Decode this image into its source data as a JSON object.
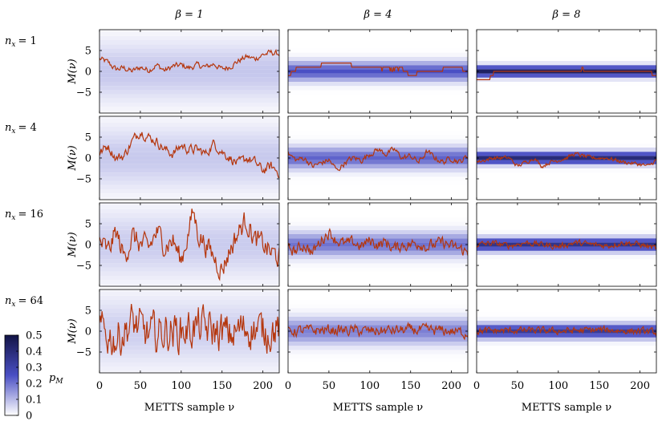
{
  "chart_data": {
    "type": "line",
    "columns": [
      {
        "label": "β = 1",
        "beta": 1
      },
      {
        "label": "β = 4",
        "beta": 4
      },
      {
        "label": "β = 8",
        "beta": 8
      }
    ],
    "rows": [
      {
        "label": "n",
        "sub": "x",
        "value": "= 1",
        "nx": 1
      },
      {
        "label": "n",
        "sub": "x",
        "value": "= 4",
        "nx": 4
      },
      {
        "label": "n",
        "sub": "x",
        "value": "= 16",
        "nx": 16
      },
      {
        "label": "n",
        "sub": "x",
        "value": "= 64",
        "nx": 64
      }
    ],
    "xlabel": "METTS sample ν",
    "ylabel": "M(ν)",
    "xlim": [
      0,
      220
    ],
    "ylim": [
      -10,
      10
    ],
    "xticks": [
      0,
      50,
      100,
      150,
      200
    ],
    "yticks": [
      -5,
      0,
      5
    ],
    "series_color": "#b5360d",
    "colorbar": {
      "label": "p",
      "label_sub": "M",
      "ticks": [
        "0",
        "0.1",
        "0.2",
        "0.3",
        "0.4",
        "0.5"
      ],
      "color_low": "#ffffff",
      "color_mid": "#4a4fc4",
      "color_high": "#121446"
    },
    "distribution_sigma": [
      [
        5.0,
        1.6,
        0.9
      ],
      [
        5.2,
        1.8,
        1.0
      ],
      [
        5.5,
        2.0,
        1.1
      ],
      [
        5.8,
        2.2,
        1.2
      ]
    ],
    "panels": [
      [
        {
          "beta": 1,
          "nx": 1,
          "keypoints": [
            [
              0,
              3
            ],
            [
              10,
              2.2
            ],
            [
              20,
              0.5
            ],
            [
              30,
              0.8
            ],
            [
              40,
              0
            ],
            [
              50,
              1
            ],
            [
              60,
              0.3
            ],
            [
              70,
              1.5
            ],
            [
              80,
              0.2
            ],
            [
              90,
              1.2
            ],
            [
              100,
              1.5
            ],
            [
              110,
              0.8
            ],
            [
              120,
              1.5
            ],
            [
              130,
              1
            ],
            [
              140,
              1.8
            ],
            [
              150,
              0.5
            ],
            [
              160,
              1.2
            ],
            [
              170,
              2.5
            ],
            [
              180,
              3.5
            ],
            [
              190,
              3
            ],
            [
              200,
              4
            ],
            [
              210,
              4.5
            ],
            [
              220,
              4.2
            ]
          ],
          "noise": 0.6
        },
        {
          "beta": 4,
          "nx": 1,
          "keypoints": [
            [
              0,
              -1
            ],
            [
              10,
              0.5
            ],
            [
              20,
              1
            ],
            [
              40,
              1
            ],
            [
              42,
              2
            ],
            [
              60,
              2
            ],
            [
              75,
              2
            ],
            [
              80,
              1
            ],
            [
              100,
              1
            ],
            [
              110,
              1
            ],
            [
              115,
              0.5
            ],
            [
              140,
              0.5
            ],
            [
              150,
              -1
            ],
            [
              165,
              0
            ],
            [
              190,
              0.5
            ],
            [
              210,
              1
            ],
            [
              220,
              -0.5
            ]
          ],
          "noise": 0.1
        },
        {
          "beta": 8,
          "nx": 1,
          "keypoints": [
            [
              0,
              -2
            ],
            [
              15,
              -2
            ],
            [
              22,
              0
            ],
            [
              60,
              0
            ],
            [
              70,
              0.3
            ],
            [
              100,
              0
            ],
            [
              120,
              0
            ],
            [
              130,
              0.5
            ],
            [
              140,
              0.3
            ],
            [
              150,
              0
            ],
            [
              200,
              0
            ],
            [
              210,
              0.3
            ],
            [
              220,
              -1.5
            ]
          ],
          "noise": 0.1
        }
      ],
      [
        {
          "beta": 1,
          "nx": 4,
          "keypoints": [
            [
              0,
              1
            ],
            [
              10,
              3
            ],
            [
              20,
              0
            ],
            [
              30,
              0.5
            ],
            [
              40,
              4
            ],
            [
              50,
              6.5
            ],
            [
              60,
              5
            ],
            [
              70,
              4
            ],
            [
              80,
              2
            ],
            [
              90,
              1
            ],
            [
              100,
              3
            ],
            [
              110,
              2
            ],
            [
              120,
              2
            ],
            [
              130,
              1
            ],
            [
              140,
              3.5
            ],
            [
              150,
              1.5
            ],
            [
              160,
              0
            ],
            [
              170,
              -1.5
            ],
            [
              180,
              0
            ],
            [
              190,
              -1
            ],
            [
              200,
              -3
            ],
            [
              210,
              -2
            ],
            [
              220,
              -3.5
            ]
          ],
          "noise": 1.0
        },
        {
          "beta": 4,
          "nx": 4,
          "keypoints": [
            [
              0,
              1
            ],
            [
              10,
              -0.5
            ],
            [
              20,
              0
            ],
            [
              30,
              -2
            ],
            [
              50,
              -0.5
            ],
            [
              60,
              -3
            ],
            [
              70,
              -1
            ],
            [
              80,
              0
            ],
            [
              90,
              -0.5
            ],
            [
              100,
              1
            ],
            [
              110,
              2
            ],
            [
              120,
              1
            ],
            [
              130,
              2
            ],
            [
              140,
              0
            ],
            [
              150,
              0.5
            ],
            [
              160,
              -1
            ],
            [
              170,
              1.5
            ],
            [
              180,
              0
            ],
            [
              190,
              -1
            ],
            [
              200,
              0
            ],
            [
              210,
              -1
            ],
            [
              220,
              0.5
            ]
          ],
          "noise": 0.6
        },
        {
          "beta": 8,
          "nx": 4,
          "keypoints": [
            [
              0,
              -1
            ],
            [
              20,
              0
            ],
            [
              40,
              0
            ],
            [
              50,
              -2
            ],
            [
              60,
              -1
            ],
            [
              70,
              0
            ],
            [
              80,
              -2
            ],
            [
              90,
              -1
            ],
            [
              110,
              0
            ],
            [
              120,
              1
            ],
            [
              130,
              0.5
            ],
            [
              140,
              0
            ],
            [
              160,
              0
            ],
            [
              180,
              -1
            ],
            [
              200,
              -1.5
            ],
            [
              210,
              -2
            ],
            [
              220,
              -0.5
            ]
          ],
          "noise": 0.4
        }
      ],
      [
        {
          "beta": 1,
          "nx": 16,
          "keypoints": [
            [
              0,
              1
            ],
            [
              10,
              -2
            ],
            [
              20,
              3
            ],
            [
              30,
              -3
            ],
            [
              40,
              2
            ],
            [
              50,
              0
            ],
            [
              60,
              -1
            ],
            [
              70,
              3
            ],
            [
              80,
              0
            ],
            [
              90,
              1
            ],
            [
              100,
              -4
            ],
            [
              110,
              4
            ],
            [
              115,
              8
            ],
            [
              120,
              3
            ],
            [
              130,
              0
            ],
            [
              140,
              -3
            ],
            [
              150,
              -6
            ],
            [
              160,
              -1
            ],
            [
              170,
              3
            ],
            [
              180,
              6
            ],
            [
              190,
              1
            ],
            [
              200,
              0
            ],
            [
              210,
              -2
            ],
            [
              220,
              -3
            ]
          ],
          "noise": 2.3
        },
        {
          "beta": 4,
          "nx": 16,
          "keypoints": [
            [
              0,
              -1
            ],
            [
              10,
              -1.5
            ],
            [
              20,
              0
            ],
            [
              30,
              -2
            ],
            [
              40,
              1
            ],
            [
              50,
              3
            ],
            [
              60,
              1
            ],
            [
              70,
              0
            ],
            [
              80,
              0.5
            ],
            [
              90,
              -0.5
            ],
            [
              100,
              1
            ],
            [
              110,
              0
            ],
            [
              120,
              0.5
            ],
            [
              130,
              -1
            ],
            [
              140,
              0
            ],
            [
              150,
              0
            ],
            [
              160,
              0.5
            ],
            [
              170,
              -0.5
            ],
            [
              180,
              0
            ],
            [
              190,
              0.5
            ],
            [
              200,
              -0.5
            ],
            [
              210,
              -1
            ],
            [
              220,
              -2
            ]
          ],
          "noise": 1.2
        },
        {
          "beta": 8,
          "nx": 16,
          "keypoints": [
            [
              0,
              0
            ],
            [
              20,
              0.3
            ],
            [
              40,
              -0.3
            ],
            [
              60,
              0.5
            ],
            [
              80,
              0
            ],
            [
              100,
              -0.5
            ],
            [
              120,
              0.5
            ],
            [
              140,
              0
            ],
            [
              160,
              -0.3
            ],
            [
              180,
              0.5
            ],
            [
              200,
              0
            ],
            [
              220,
              -1
            ]
          ],
          "noise": 0.6
        }
      ],
      [
        {
          "beta": 1,
          "nx": 64,
          "keypoints": [
            [
              0,
              0
            ],
            [
              20,
              -2
            ],
            [
              40,
              2
            ],
            [
              60,
              -1
            ],
            [
              80,
              0
            ],
            [
              100,
              0
            ],
            [
              120,
              1
            ],
            [
              140,
              0
            ],
            [
              160,
              -1
            ],
            [
              180,
              1
            ],
            [
              200,
              0
            ],
            [
              220,
              0.5
            ]
          ],
          "noise": 4.0
        },
        {
          "beta": 4,
          "nx": 64,
          "keypoints": [
            [
              0,
              0
            ],
            [
              50,
              0.3
            ],
            [
              100,
              0
            ],
            [
              150,
              0.3
            ],
            [
              200,
              0
            ],
            [
              220,
              -0.5
            ]
          ],
          "noise": 1.1
        },
        {
          "beta": 8,
          "nx": 64,
          "keypoints": [
            [
              0,
              0
            ],
            [
              50,
              0.2
            ],
            [
              100,
              0
            ],
            [
              150,
              0.3
            ],
            [
              200,
              0
            ],
            [
              220,
              -0.3
            ]
          ],
          "noise": 0.7
        }
      ]
    ]
  }
}
